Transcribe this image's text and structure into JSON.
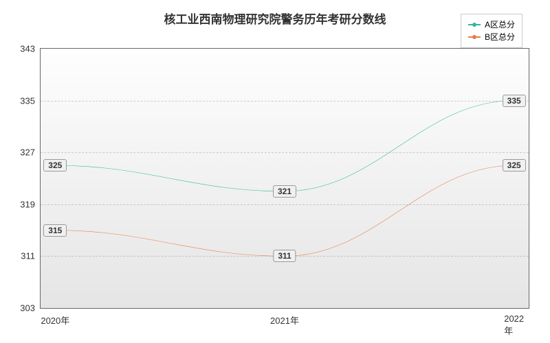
{
  "chart": {
    "type": "line",
    "title": "核工业西南物理研究院警务历年考研分数线",
    "title_fontsize": 17,
    "title_color": "#333333",
    "background_color": "#ffffff",
    "plot_background_gradient": [
      "#fefefe",
      "#e5e5e5"
    ],
    "border_color": "#666666",
    "grid_color": "rgba(120,120,120,0.35)",
    "x": {
      "categories": [
        "2020年",
        "2021年",
        "2022年"
      ],
      "label_fontsize": 13,
      "label_color": "#333333"
    },
    "y": {
      "min": 303,
      "max": 343,
      "tick_step": 8,
      "ticks": [
        303,
        311,
        319,
        327,
        335,
        343
      ],
      "label_fontsize": 13,
      "label_color": "#333333"
    },
    "series": [
      {
        "name": "A区总分",
        "color": "#2fb8a0",
        "line_width": 2,
        "marker": "circle",
        "marker_size": 5,
        "smooth": true,
        "values": [
          325,
          321,
          335
        ],
        "data_labels": [
          "325",
          "321",
          "335"
        ]
      },
      {
        "name": "B区总分",
        "color": "#e87c4a",
        "line_width": 2,
        "marker": "circle",
        "marker_size": 5,
        "smooth": true,
        "values": [
          315,
          311,
          325
        ],
        "data_labels": [
          "315",
          "311",
          "325"
        ]
      }
    ],
    "legend": {
      "position": "top-right",
      "border_color": "#cccccc",
      "background": "#ffffff",
      "fontsize": 12
    }
  }
}
